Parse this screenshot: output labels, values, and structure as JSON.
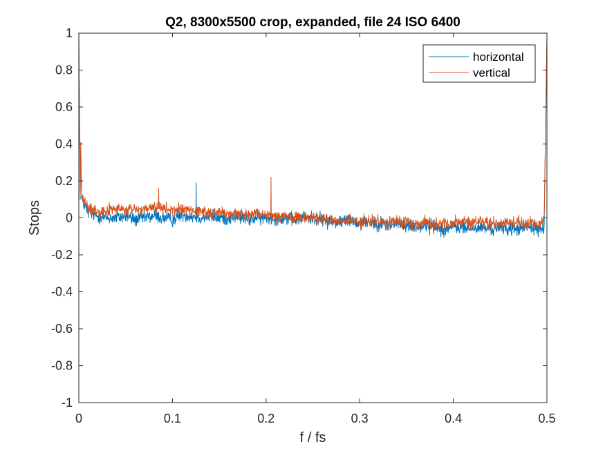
{
  "chart_data": {
    "type": "line",
    "title": "Q2, 8300x5500 crop, expanded, file 24 ISO 6400",
    "xlabel": "f / fs",
    "ylabel": "Stops",
    "xlim": [
      0,
      0.5
    ],
    "ylim": [
      -1,
      1
    ],
    "xticks": [
      0,
      0.1,
      0.2,
      0.3,
      0.4,
      0.5
    ],
    "xtick_labels": [
      "0",
      "0.1",
      "0.2",
      "0.3",
      "0.4",
      "0.5"
    ],
    "yticks": [
      1,
      0.8,
      0.6,
      0.4,
      0.2,
      0,
      -0.2,
      -0.4,
      -0.6,
      -0.8,
      -1
    ],
    "ytick_labels": [
      "1",
      "0.8",
      "0.6",
      "0.4",
      "0.2",
      "0",
      "-0.2",
      "-0.4",
      "-0.6",
      "-0.8",
      "-1"
    ],
    "grid": false,
    "legend_position": "top-right",
    "series": [
      {
        "name": "horizontal",
        "color": "#0072BD",
        "x": [
          0,
          0.003,
          0.01,
          0.02,
          0.03,
          0.04,
          0.05,
          0.06,
          0.07,
          0.08,
          0.09,
          0.1,
          0.11,
          0.12,
          0.125,
          0.13,
          0.14,
          0.15,
          0.16,
          0.17,
          0.18,
          0.19,
          0.2,
          0.21,
          0.22,
          0.23,
          0.24,
          0.25,
          0.26,
          0.27,
          0.28,
          0.29,
          0.3,
          0.31,
          0.32,
          0.33,
          0.34,
          0.35,
          0.36,
          0.37,
          0.38,
          0.39,
          0.4,
          0.41,
          0.42,
          0.43,
          0.44,
          0.45,
          0.46,
          0.47,
          0.48,
          0.49,
          0.497,
          0.5
        ],
        "y": [
          1.0,
          0.1,
          0.03,
          0.01,
          0.0,
          0.0,
          0.01,
          -0.01,
          0.0,
          0.01,
          0.0,
          -0.01,
          0.02,
          0.01,
          0.19,
          0.0,
          0.01,
          0.0,
          0.0,
          0.01,
          -0.01,
          0.0,
          0.0,
          0.0,
          0.0,
          -0.01,
          0.0,
          0.0,
          -0.01,
          -0.02,
          -0.02,
          -0.01,
          -0.03,
          -0.02,
          -0.03,
          -0.04,
          -0.03,
          -0.04,
          -0.05,
          -0.04,
          -0.05,
          -0.06,
          -0.05,
          -0.05,
          -0.06,
          -0.05,
          -0.06,
          -0.05,
          -0.06,
          -0.06,
          -0.05,
          -0.06,
          -0.05,
          0.98
        ]
      },
      {
        "name": "vertical",
        "color": "#D95319",
        "x": [
          0,
          0.003,
          0.01,
          0.02,
          0.03,
          0.04,
          0.05,
          0.06,
          0.07,
          0.08,
          0.085,
          0.09,
          0.1,
          0.11,
          0.12,
          0.13,
          0.14,
          0.15,
          0.16,
          0.17,
          0.18,
          0.19,
          0.2,
          0.205,
          0.21,
          0.22,
          0.23,
          0.24,
          0.25,
          0.26,
          0.27,
          0.28,
          0.29,
          0.3,
          0.31,
          0.32,
          0.33,
          0.34,
          0.35,
          0.36,
          0.37,
          0.38,
          0.39,
          0.4,
          0.41,
          0.42,
          0.43,
          0.44,
          0.45,
          0.46,
          0.47,
          0.48,
          0.49,
          0.497,
          0.5
        ],
        "y": [
          1.0,
          0.12,
          0.05,
          0.04,
          0.04,
          0.05,
          0.04,
          0.05,
          0.04,
          0.06,
          0.16,
          0.05,
          0.04,
          0.05,
          0.04,
          0.04,
          0.03,
          0.03,
          0.02,
          0.02,
          0.02,
          0.02,
          0.01,
          0.22,
          0.01,
          0.01,
          0.0,
          0.01,
          0.0,
          -0.01,
          -0.01,
          -0.02,
          -0.01,
          -0.02,
          -0.02,
          -0.02,
          -0.03,
          -0.02,
          -0.03,
          -0.03,
          -0.02,
          -0.03,
          -0.03,
          -0.03,
          -0.02,
          -0.03,
          -0.02,
          -0.03,
          -0.03,
          -0.02,
          -0.03,
          -0.03,
          -0.03,
          -0.02,
          0.98
        ]
      }
    ]
  }
}
